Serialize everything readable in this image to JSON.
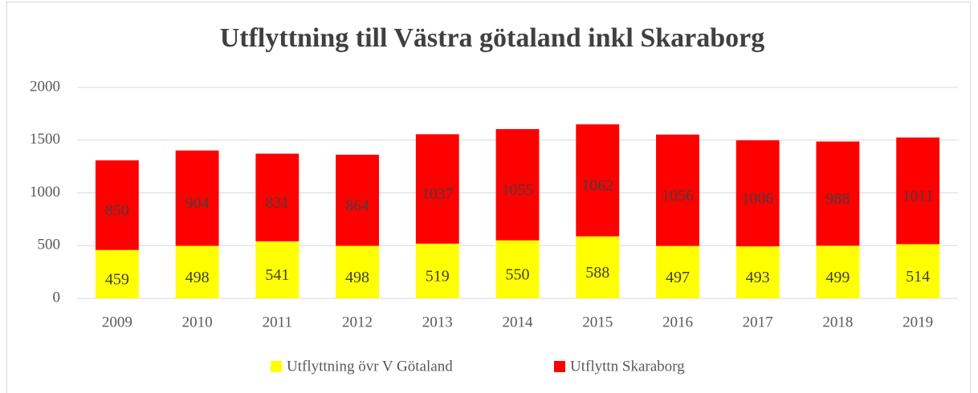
{
  "chart_data": {
    "type": "stacked_bar",
    "title": "Utflyttning till Västra götaland inkl Skaraborg",
    "categories": [
      "2009",
      "2010",
      "2011",
      "2012",
      "2013",
      "2014",
      "2015",
      "2016",
      "2017",
      "2018",
      "2019"
    ],
    "series": [
      {
        "name": "Utflyttning övr V Götaland",
        "color": "#ffff00",
        "values": [
          459,
          498,
          541,
          498,
          519,
          550,
          588,
          497,
          493,
          499,
          514
        ]
      },
      {
        "name": "Utflyttn Skaraborg",
        "color": "#ff0000",
        "values": [
          850,
          904,
          831,
          864,
          1037,
          1055,
          1062,
          1056,
          1006,
          988,
          1011
        ]
      }
    ],
    "ylim": [
      0,
      2000
    ],
    "yticks": [
      0,
      500,
      1000,
      1500,
      2000
    ],
    "grid": true,
    "legend": "bottom"
  }
}
